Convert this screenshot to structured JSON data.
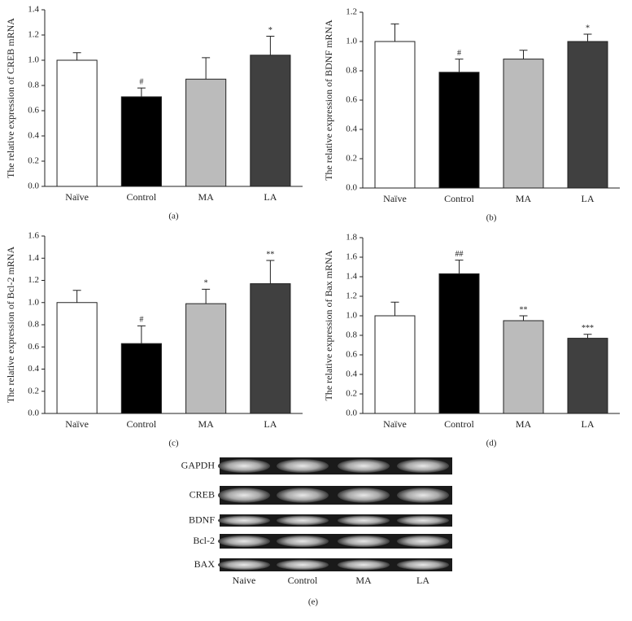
{
  "chart_data": [
    {
      "type": "bar",
      "caption": "(a)",
      "y_label": "The relative expression of CREB mRNA",
      "categories": [
        "Naïve",
        "Control",
        "MA",
        "LA"
      ],
      "values": [
        1.0,
        0.71,
        0.85,
        1.04
      ],
      "errors": [
        0.06,
        0.07,
        0.17,
        0.15
      ],
      "annotations": [
        null,
        "#",
        null,
        "*"
      ],
      "colors": [
        "#ffffff",
        "#000000",
        "#bbbbbb",
        "#404040"
      ],
      "ylim": [
        0,
        1.4
      ],
      "yticks": [
        {
          "value": 0,
          "label": "0.0"
        },
        {
          "value": 0.2,
          "label": "0.2"
        },
        {
          "value": 0.4,
          "label": "0.4"
        },
        {
          "value": 0.6,
          "label": "0.6"
        },
        {
          "value": 0.8,
          "label": "0.8"
        },
        {
          "value": 1,
          "label": "1.0"
        },
        {
          "value": 1.2,
          "label": "1.2"
        },
        {
          "value": 1.4,
          "label": "1.4"
        }
      ]
    },
    {
      "type": "bar",
      "caption": "(b)",
      "y_label": "The relative expression of BDNF mRNA",
      "categories": [
        "Naïve",
        "Control",
        "MA",
        "LA"
      ],
      "values": [
        1.0,
        0.79,
        0.88,
        1.0
      ],
      "errors": [
        0.12,
        0.09,
        0.06,
        0.05
      ],
      "annotations": [
        null,
        "#",
        null,
        "*"
      ],
      "colors": [
        "#ffffff",
        "#000000",
        "#bbbbbb",
        "#404040"
      ],
      "ylim": [
        0,
        1.2
      ],
      "yticks": [
        {
          "value": 0,
          "label": "0.0"
        },
        {
          "value": 0.2,
          "label": "0.2"
        },
        {
          "value": 0.4,
          "label": "0.4"
        },
        {
          "value": 0.6,
          "label": "0.6"
        },
        {
          "value": 0.8,
          "label": "0.8"
        },
        {
          "value": 1,
          "label": "1.0"
        },
        {
          "value": 1.2,
          "label": "1.2"
        }
      ]
    },
    {
      "type": "bar",
      "caption": "(c)",
      "y_label": "The relative expression of Bcl-2 mRNA",
      "categories": [
        "Naïve",
        "Control",
        "MA",
        "LA"
      ],
      "values": [
        1.0,
        0.63,
        0.99,
        1.17
      ],
      "errors": [
        0.11,
        0.16,
        0.13,
        0.21
      ],
      "annotations": [
        null,
        "#",
        "*",
        "**"
      ],
      "colors": [
        "#ffffff",
        "#000000",
        "#bbbbbb",
        "#404040"
      ],
      "ylim": [
        0,
        1.6
      ],
      "yticks": [
        {
          "value": 0,
          "label": "0.0"
        },
        {
          "value": 0.2,
          "label": "0.2"
        },
        {
          "value": 0.4,
          "label": "0.4"
        },
        {
          "value": 0.6,
          "label": "0.6"
        },
        {
          "value": 0.8,
          "label": "0.8"
        },
        {
          "value": 1,
          "label": "1.0"
        },
        {
          "value": 1.2,
          "label": "1.2"
        },
        {
          "value": 1.4,
          "label": "1.4"
        },
        {
          "value": 1.6,
          "label": "1.6"
        }
      ]
    },
    {
      "type": "bar",
      "caption": "(d)",
      "y_label": "The relative expression of Bax mRNA",
      "categories": [
        "Naïve",
        "Control",
        "MA",
        "LA"
      ],
      "values": [
        1.0,
        1.43,
        0.95,
        0.77
      ],
      "errors": [
        0.14,
        0.14,
        0.05,
        0.04
      ],
      "annotations": [
        null,
        "##",
        "**",
        "***"
      ],
      "colors": [
        "#ffffff",
        "#000000",
        "#bbbbbb",
        "#404040"
      ],
      "ylim": [
        0,
        1.8
      ],
      "yticks": [
        {
          "value": 0,
          "label": "0.0"
        },
        {
          "value": 0.2,
          "label": "0.2"
        },
        {
          "value": 0.4,
          "label": "0.4"
        },
        {
          "value": 0.6,
          "label": "0.6"
        },
        {
          "value": 0.8,
          "label": "0.8"
        },
        {
          "value": 1,
          "label": "1.0"
        },
        {
          "value": 1.2,
          "label": "1.2"
        },
        {
          "value": 1.4,
          "label": "1.4"
        },
        {
          "value": 1.6,
          "label": "1.6"
        },
        {
          "value": 1.8,
          "label": "1.8"
        }
      ]
    }
  ],
  "gel": {
    "rows": [
      "GAPDH",
      "CREB",
      "BDNF",
      "Bcl-2",
      "BAX"
    ],
    "lanes": [
      "Naive",
      "Control",
      "MA",
      "LA"
    ],
    "caption": "(e)"
  }
}
